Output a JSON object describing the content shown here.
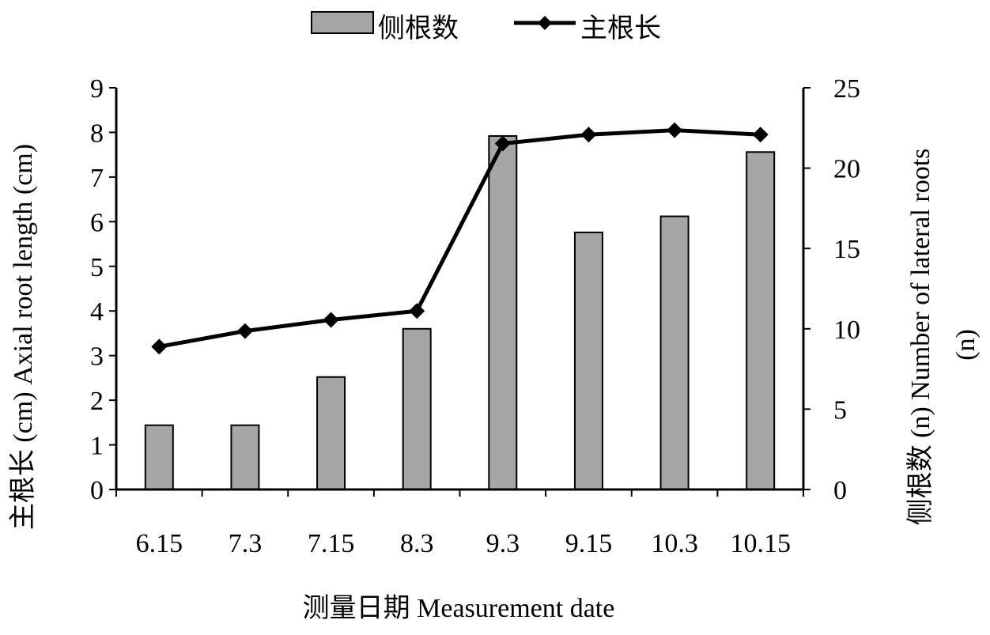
{
  "chart_data": {
    "type": "bar",
    "categories": [
      "6.15",
      "7.3",
      "7.15",
      "8.3",
      "9.3",
      "9.15",
      "10.3",
      "10.15"
    ],
    "series": [
      {
        "name": "侧根数",
        "kind": "bar",
        "axis": "right",
        "values": [
          4,
          4,
          7,
          10,
          22,
          16,
          17,
          21
        ]
      },
      {
        "name": "主根长",
        "kind": "line",
        "axis": "left",
        "marker": "diamond",
        "values": [
          3.2,
          3.55,
          3.8,
          4.0,
          7.75,
          7.95,
          8.05,
          7.95
        ]
      }
    ],
    "xlabel": "测量日期 Measurement date",
    "ylabel_left": "主根长 (cm) Axial root length (cm)",
    "ylabel_right": "侧根数 (n) Number of lateral roots (n)",
    "ylabel_right_line1": "侧根数 (n) Number of lateral roots",
    "ylabel_right_line2": "(n)",
    "ylim_left": [
      0,
      9
    ],
    "yticks_left": [
      "0",
      "1",
      "2",
      "3",
      "4",
      "5",
      "6",
      "7",
      "8",
      "9"
    ],
    "ylim_right": [
      0,
      25
    ],
    "yticks_right": [
      "0",
      "5",
      "10",
      "15",
      "20",
      "25"
    ],
    "grid": false,
    "legend_position": "top-center",
    "colors": {
      "bar": "#a6a6a6",
      "line": "#000000"
    }
  }
}
